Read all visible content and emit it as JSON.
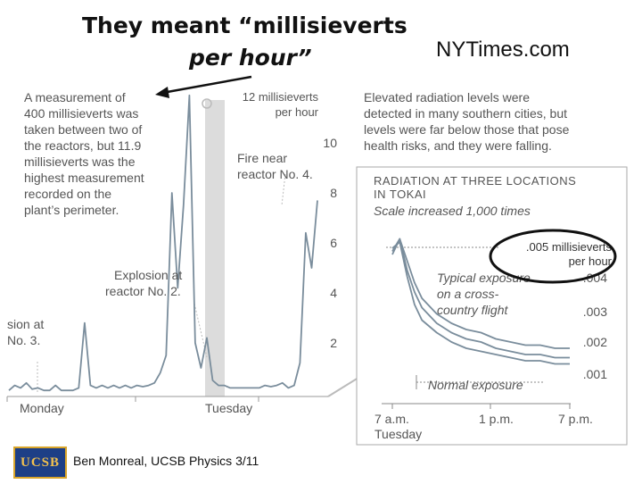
{
  "slide": {
    "title_line1": "They meant “millisieverts",
    "title_line2": "per hour”",
    "source": "NYTimes.com",
    "left_note_lines": [
      "A measurement of",
      "400 millisieverts was",
      "taken between two of",
      "the reactors, but 11.9",
      "millisieverts was the",
      "highest measurement",
      "recorded on the",
      "plant’s perimeter."
    ],
    "right_note_lines": [
      "Elevated radiation levels were",
      "detected in many southern cities, but",
      "levels were far below those that pose",
      "health risks, and they were falling."
    ],
    "footer": "Ben Monreal, UCSB Physics  3/11",
    "logo_text": "UCSB",
    "colors": {
      "line": "#7a8d9c",
      "highlight": "#dcdcdc",
      "text": "#555555",
      "circle": "#111111"
    }
  },
  "chart_data": [
    {
      "type": "line",
      "title": "",
      "ylabel": "12 millisieverts\nper hour",
      "ylabel_lines": [
        "12 millisieverts",
        "per hour"
      ],
      "y_ticks": [
        2,
        4,
        6,
        8,
        10
      ],
      "y_tick_labels": [
        "2",
        "4",
        "6",
        "8",
        "10"
      ],
      "x_ticks": [
        "Monday",
        "Tuesday"
      ],
      "annotations": {
        "explosion_3": [
          "sion at",
          "No. 3."
        ],
        "explosion_2": [
          "Explosion at",
          "reactor No. 2."
        ],
        "fire_4": [
          "Fire near",
          "reactor No. 4."
        ]
      },
      "series": [
        {
          "values": [
            0.1,
            0.3,
            0.2,
            0.4,
            0.15,
            0.2,
            0.1,
            0.1,
            0.3,
            0.1,
            0.1,
            0.1,
            0.2,
            2.8,
            0.3,
            0.2,
            0.3,
            0.2,
            0.3,
            0.2,
            0.3,
            0.2,
            0.3,
            0.25,
            0.3,
            0.4,
            0.8,
            1.5,
            8,
            4.2,
            7.5,
            11.9,
            2,
            1,
            2.2,
            0.5,
            0.3,
            0.3,
            0.2,
            0.2,
            0.2,
            0.2,
            0.2,
            0.2,
            0.3,
            0.25,
            0.3,
            0.4,
            0.2,
            0.3,
            1.2,
            6.4,
            5,
            7.7
          ]
        }
      ]
    },
    {
      "type": "line",
      "title": "RADIATION AT THREE LOCATIONS\nIN TOKAI",
      "title_lines": [
        "RADIATION AT THREE LOCATIONS",
        "IN TOKAI"
      ],
      "subtitle": "Scale increased 1,000 times",
      "ylabel": ".005 millisieverts\nper hour",
      "ylabel_lines": [
        ".005 millisieverts",
        "per hour"
      ],
      "y_ticks": [
        0.001,
        0.002,
        0.003,
        0.004
      ],
      "y_tick_labels": [
        ".001",
        ".002",
        ".003",
        ".004"
      ],
      "x_ticks": [
        "7 a.m.",
        "1 p.m.",
        "7 p.m."
      ],
      "x_sublabel": "Tuesday",
      "annotations": {
        "typical": [
          "Typical exposure",
          "on a cross-",
          "country flight"
        ],
        "normal": "Normal exposure"
      },
      "reference_lines": [
        0.005,
        0.0004
      ],
      "series": [
        {
          "x": [
            7,
            7.5,
            8,
            8.5,
            9,
            10,
            11,
            12,
            13,
            14,
            15,
            16,
            17,
            18,
            19
          ],
          "values": [
            0.0048,
            0.0053,
            0.0046,
            0.0039,
            0.0034,
            0.0029,
            0.0026,
            0.0024,
            0.0023,
            0.0021,
            0.002,
            0.0019,
            0.0019,
            0.0018,
            0.0018
          ]
        },
        {
          "x": [
            7,
            7.5,
            8,
            8.5,
            9,
            10,
            11,
            12,
            13,
            14,
            15,
            16,
            17,
            18,
            19
          ],
          "values": [
            0.0049,
            0.0053,
            0.0043,
            0.0036,
            0.0031,
            0.0026,
            0.0023,
            0.0021,
            0.002,
            0.0018,
            0.0017,
            0.0016,
            0.0016,
            0.0015,
            0.0015
          ]
        },
        {
          "x": [
            7,
            7.5,
            8,
            8.5,
            9,
            10,
            11,
            12,
            13,
            14,
            15,
            16,
            17,
            18,
            19
          ],
          "values": [
            0.005,
            0.0052,
            0.0041,
            0.0032,
            0.0027,
            0.0023,
            0.002,
            0.0018,
            0.0017,
            0.0016,
            0.0015,
            0.0014,
            0.0014,
            0.0013,
            0.0013
          ]
        }
      ]
    }
  ]
}
